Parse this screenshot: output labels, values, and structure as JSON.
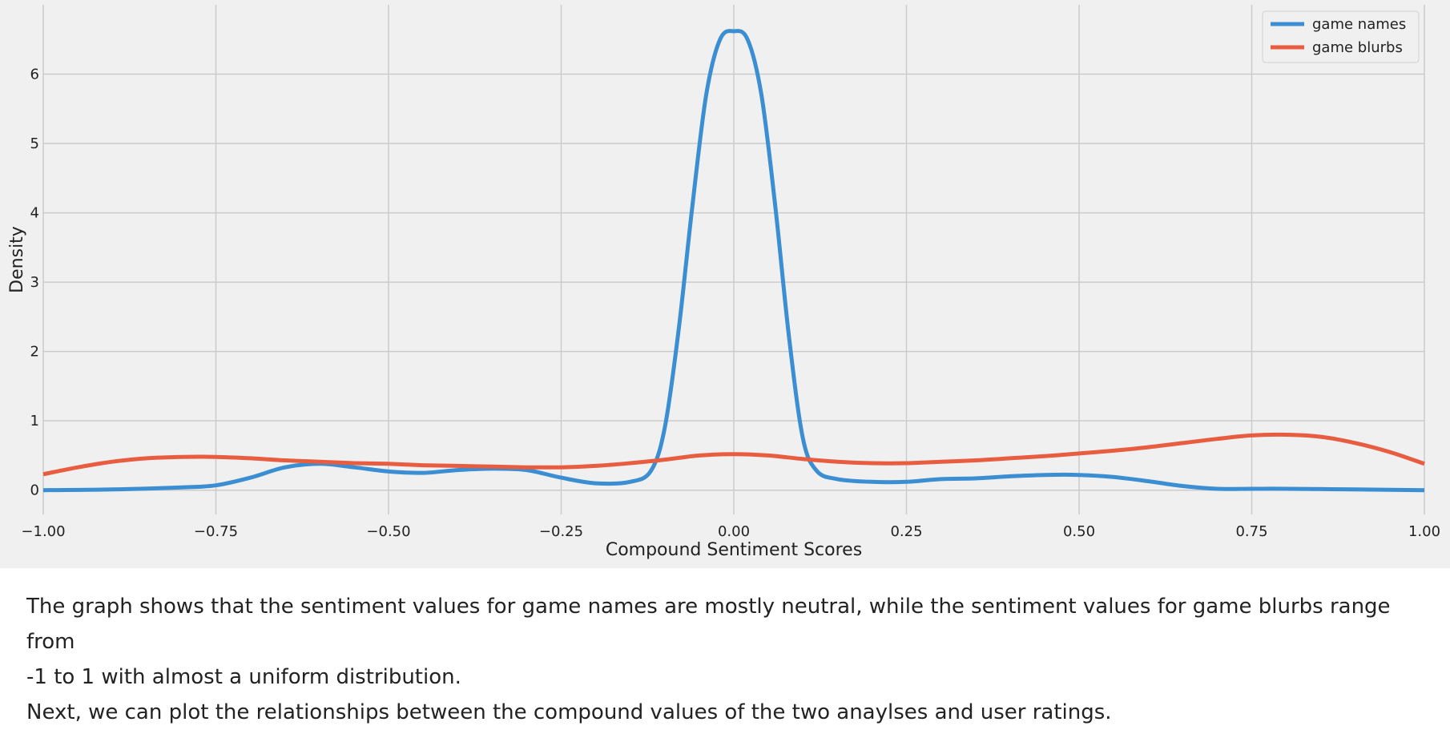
{
  "chart_data": {
    "type": "line",
    "xlabel": "Compound Sentiment Scores",
    "ylabel": "Density",
    "xlim": [
      -1.0,
      1.0
    ],
    "ylim": [
      -0.35,
      7.0
    ],
    "xticks": [
      -1.0,
      -0.75,
      -0.5,
      -0.25,
      0.0,
      0.25,
      0.5,
      0.75,
      1.0
    ],
    "xtick_labels": [
      "−1.00",
      "−0.75",
      "−0.50",
      "−0.25",
      "0.00",
      "0.25",
      "0.50",
      "0.75",
      "1.00"
    ],
    "yticks": [
      0,
      1,
      2,
      3,
      4,
      5,
      6
    ],
    "ytick_labels": [
      "0",
      "1",
      "2",
      "3",
      "4",
      "5",
      "6"
    ],
    "grid": true,
    "legend_position": "top-right",
    "series": [
      {
        "name": "game names",
        "color": "#3b8ed1",
        "x": [
          -1.0,
          -0.9,
          -0.8,
          -0.75,
          -0.7,
          -0.65,
          -0.6,
          -0.55,
          -0.5,
          -0.45,
          -0.4,
          -0.35,
          -0.3,
          -0.25,
          -0.2,
          -0.15,
          -0.12,
          -0.1,
          -0.08,
          -0.06,
          -0.04,
          -0.02,
          0.0,
          0.02,
          0.04,
          0.06,
          0.08,
          0.1,
          0.12,
          0.15,
          0.2,
          0.25,
          0.3,
          0.35,
          0.4,
          0.45,
          0.5,
          0.55,
          0.6,
          0.65,
          0.7,
          0.75,
          0.8,
          0.9,
          1.0
        ],
        "y": [
          0.0,
          0.01,
          0.04,
          0.07,
          0.18,
          0.33,
          0.38,
          0.33,
          0.27,
          0.25,
          0.29,
          0.31,
          0.29,
          0.18,
          0.1,
          0.12,
          0.28,
          0.9,
          2.3,
          4.1,
          5.7,
          6.5,
          6.62,
          6.5,
          5.7,
          4.1,
          2.2,
          0.75,
          0.28,
          0.16,
          0.12,
          0.12,
          0.16,
          0.17,
          0.2,
          0.22,
          0.22,
          0.19,
          0.13,
          0.06,
          0.02,
          0.02,
          0.02,
          0.01,
          0.0
        ]
      },
      {
        "name": "game blurbs",
        "color": "#e85c40",
        "x": [
          -1.0,
          -0.95,
          -0.9,
          -0.85,
          -0.8,
          -0.75,
          -0.7,
          -0.65,
          -0.6,
          -0.55,
          -0.5,
          -0.45,
          -0.4,
          -0.35,
          -0.3,
          -0.25,
          -0.2,
          -0.15,
          -0.1,
          -0.05,
          0.0,
          0.05,
          0.1,
          0.15,
          0.2,
          0.25,
          0.3,
          0.35,
          0.4,
          0.45,
          0.5,
          0.55,
          0.6,
          0.65,
          0.7,
          0.75,
          0.8,
          0.85,
          0.9,
          0.95,
          1.0
        ],
        "y": [
          0.23,
          0.33,
          0.41,
          0.46,
          0.48,
          0.48,
          0.46,
          0.43,
          0.41,
          0.39,
          0.38,
          0.36,
          0.35,
          0.34,
          0.33,
          0.33,
          0.35,
          0.39,
          0.44,
          0.5,
          0.52,
          0.5,
          0.45,
          0.41,
          0.39,
          0.39,
          0.41,
          0.43,
          0.46,
          0.49,
          0.53,
          0.57,
          0.62,
          0.68,
          0.74,
          0.79,
          0.8,
          0.77,
          0.68,
          0.55,
          0.38
        ]
      }
    ]
  },
  "caption": {
    "line1": "The graph shows that the sentiment values for game names are mostly neutral, while the sentiment values for game blurbs range from",
    "line2": "-1 to 1 with almost a uniform distribution.",
    "line3": "Next, we can plot the relationships between the compound values of the two anaylses and user ratings."
  }
}
